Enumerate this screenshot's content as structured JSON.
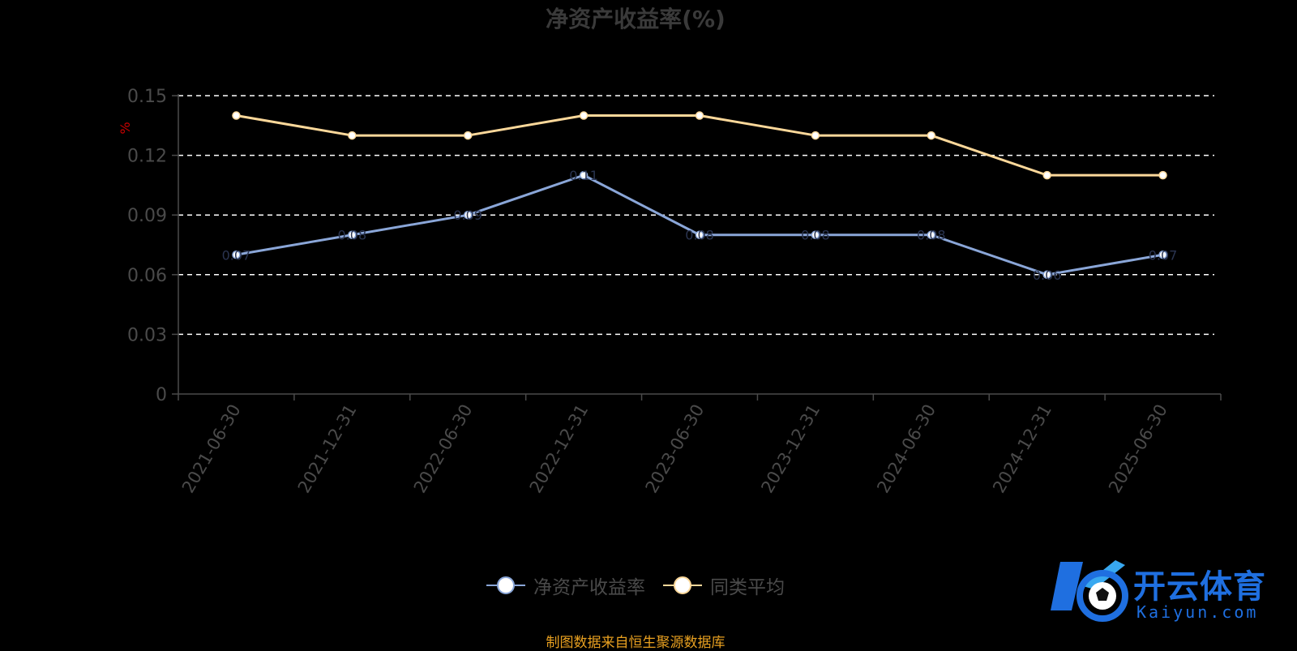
{
  "chart_data": {
    "type": "line",
    "title": "净资产收益率(%)",
    "ylabel": "%",
    "ylim": [
      0,
      0.15
    ],
    "yticks": [
      "0",
      "0.03",
      "0.06",
      "0.09",
      "0.12",
      "0.15"
    ],
    "grid": true,
    "legend_position": "bottom",
    "categories": [
      "2021-06-30",
      "2021-12-31",
      "2022-06-30",
      "2022-12-31",
      "2023-06-30",
      "2023-12-31",
      "2024-06-30",
      "2024-12-31",
      "2025-06-30"
    ],
    "series": [
      {
        "name": "净资产收益率",
        "color": "#8aa6d8",
        "values": [
          0.07,
          0.08,
          0.09,
          0.11,
          0.08,
          0.08,
          0.08,
          0.06,
          0.07
        ]
      },
      {
        "name": "同类平均",
        "color": "#fcd89a",
        "values": [
          0.14,
          0.13,
          0.13,
          0.14,
          0.14,
          0.13,
          0.13,
          0.11,
          0.11
        ]
      }
    ]
  },
  "source_note": "制图数据来自恒生聚源数据库",
  "watermark": {
    "brand": "开云体育",
    "domain": "Kaiyun.com"
  },
  "colors": {
    "axis": "#4a4a4a",
    "grid": "#ffffff",
    "ylabel": "#cc0000",
    "source": "#e8a020",
    "brand": "#1f6fe0"
  }
}
